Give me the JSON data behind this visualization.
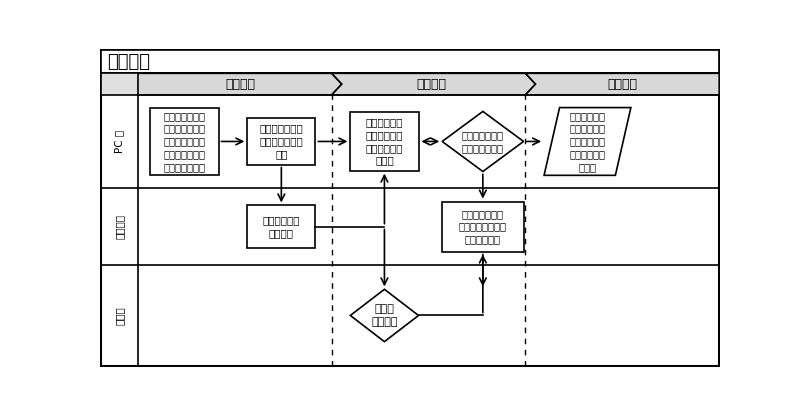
{
  "title": "工作原理",
  "phase_labels": [
    "第一阶段",
    "第二阶段",
    "测试结束"
  ],
  "row_labels": [
    "PC 端",
    "测试终端",
    "网络端"
  ],
  "box1_text": "调用系统，自动\n切换端口供用户\n选择，进行用户\n设置条件，调用\n自动测试脚本。",
  "box2_text": "启动测试，向测\n试终端发出相关\n指令",
  "box3_text": "系统调用数据\n记录模块对网\n络连接状态进\n行记录",
  "box4_text": "调用问题检测模\n块搜集失败信息",
  "box5_text": "捕获数据包，\n统计连接成功\n率、连接失败\n点，并记录问\n题数据",
  "box6_text": "测试终端进行\n拨号连接",
  "box7_text": "收到反馈数据包\n并传给底层系统进\n行分析和监测",
  "box8_text": "网络回\n模数据包"
}
